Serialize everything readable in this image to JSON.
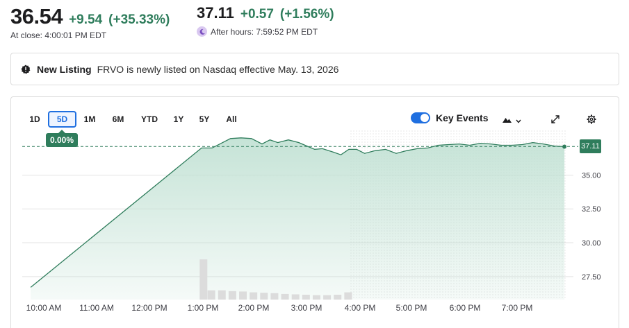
{
  "quote": {
    "close_price": "36.54",
    "close_change": "+9.54",
    "close_change_pct": "(+35.33%)",
    "close_time": "At close: 4:00:01 PM EDT",
    "after_price": "37.11",
    "after_change": "+0.57",
    "after_change_pct": "(+1.56%)",
    "after_time": "After hours: 7:59:52 PM EDT"
  },
  "banner": {
    "title": "New Listing",
    "text": "FRVO is newly listed on Nasdaq effective May. 13, 2026"
  },
  "toolbar": {
    "ranges": [
      "1D",
      "5D",
      "1M",
      "6M",
      "YTD",
      "1Y",
      "5Y",
      "All"
    ],
    "active_range": "5D",
    "change_tooltip": "0.00%",
    "key_events_label": "Key Events",
    "key_events_on": true,
    "icons": [
      "mountain-chart-icon",
      "chevron-down-icon",
      "expand-icon",
      "gear-icon"
    ]
  },
  "colors": {
    "accent_blue": "#1f6fe0",
    "positive_green": "#2f7d5c",
    "area_fill": "#d5ebe2",
    "volume_bar": "#dcdcdc"
  },
  "chart_data": {
    "type": "area",
    "current_price_label": "37.11",
    "reference_price": 37.11,
    "ylim": [
      25.8,
      38.2
    ],
    "y_ticks": [
      27.5,
      30.0,
      32.5,
      35.0
    ],
    "y_tick_labels": [
      "27.50",
      "30.00",
      "32.50",
      "35.00"
    ],
    "x_tick_labels": [
      "10:00 AM",
      "11:00 AM",
      "12:00 PM",
      "1:00 PM",
      "2:00 PM",
      "3:00 PM",
      "4:00 PM",
      "5:00 PM",
      "6:00 PM",
      "7:00 PM"
    ],
    "x_range_hours": [
      9.75,
      20.0
    ],
    "after_hours_start": 15.83,
    "x": [
      9.75,
      13.0,
      13.2,
      13.55,
      13.75,
      13.95,
      14.15,
      14.3,
      14.45,
      14.65,
      14.85,
      15.0,
      15.15,
      15.3,
      15.5,
      15.65,
      15.8,
      15.95,
      16.1,
      16.3,
      16.5,
      16.7,
      16.9,
      17.1,
      17.3,
      17.5,
      17.7,
      17.9,
      18.1,
      18.3,
      18.5,
      18.7,
      18.9,
      19.1,
      19.3,
      19.5,
      19.7,
      19.9
    ],
    "y": [
      26.7,
      37.0,
      37.0,
      37.7,
      37.75,
      37.7,
      37.3,
      37.6,
      37.4,
      37.6,
      37.4,
      37.15,
      36.9,
      36.95,
      36.7,
      36.5,
      36.9,
      36.9,
      36.6,
      36.8,
      36.9,
      36.6,
      36.8,
      36.95,
      37.0,
      37.2,
      37.25,
      37.3,
      37.2,
      37.35,
      37.3,
      37.2,
      37.2,
      37.25,
      37.4,
      37.3,
      37.15,
      37.1
    ],
    "volume_x": [
      13.05,
      13.2,
      13.4,
      13.6,
      13.8,
      14.0,
      14.2,
      14.4,
      14.6,
      14.8,
      15.0,
      15.2,
      15.4,
      15.6,
      15.8
    ],
    "volume_rel": [
      1.0,
      0.23,
      0.23,
      0.21,
      0.2,
      0.18,
      0.17,
      0.16,
      0.14,
      0.13,
      0.12,
      0.11,
      0.11,
      0.12,
      0.18
    ]
  }
}
